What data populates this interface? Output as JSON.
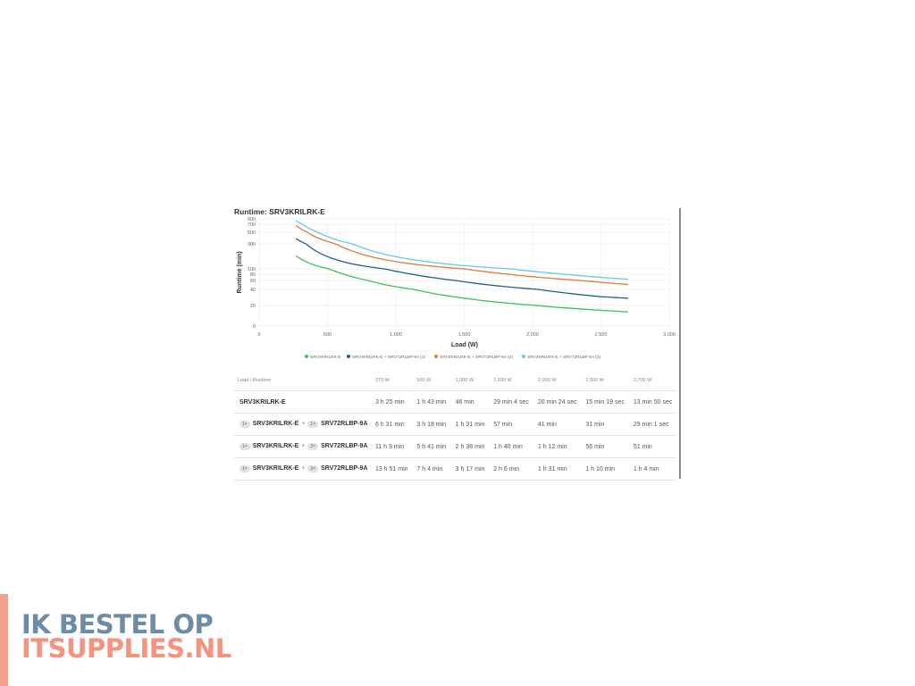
{
  "chart_data": {
    "type": "line",
    "title": "Runtime: SRV3KRILRK-E",
    "xlabel": "Load (W)",
    "ylabel": "Runtime (min)",
    "xlim": [
      0,
      3000
    ],
    "xticks": [
      "0",
      "500",
      "1,000",
      "1,500",
      "2,000",
      "2,500",
      "3,000"
    ],
    "xtick_values": [
      0,
      500,
      1000,
      1500,
      2000,
      2500,
      3000
    ],
    "yticks": [
      "0",
      "20",
      "40",
      "60",
      "80",
      "100",
      "300",
      "500",
      "700",
      "900"
    ],
    "ytick_values": [
      0,
      20,
      40,
      60,
      80,
      100,
      300,
      500,
      700,
      900
    ],
    "grid": true,
    "legend_position": "bottom",
    "x": [
      270,
      500,
      1000,
      1500,
      2000,
      2500,
      2700
    ],
    "series": [
      {
        "name": "SRV3KRILRK-E",
        "color": "#3dbf55",
        "values": [
          205,
          103,
          46,
          29.07,
          20.4,
          15.32,
          13.83
        ]
      },
      {
        "name": "SRV3KRILRK-E + SRV72RLBP-9A (1)",
        "color": "#1d5f8c",
        "values": [
          391,
          198,
          91,
          57,
          41,
          31,
          29.02
        ]
      },
      {
        "name": "SRV3KRILRK-E + SRV72RLBP-9A (2)",
        "color": "#e07b3a",
        "values": [
          669,
          341,
          158,
          100,
          72,
          56,
          51
        ]
      },
      {
        "name": "SRV3KRILRK-E + SRV72RLBP-9A (3)",
        "color": "#6cc8e4",
        "values": [
          831,
          424,
          197,
          126,
          91,
          70,
          64
        ]
      }
    ]
  },
  "table": {
    "headers": [
      "Load / Runtime",
      "270 W",
      "500 W",
      "1,000 W",
      "1,500 W",
      "2,000 W",
      "2,500 W",
      "2,700 W"
    ],
    "rows": [
      {
        "base": "SRV3KRILRK-E",
        "cells": [
          "3 h 25 min",
          "1 h 43 min",
          "46 min",
          "29 min 4 sec",
          "20 min 24 sec",
          "15 min 19 sec",
          "13 min 50 sec"
        ]
      },
      {
        "base_qty": "1×",
        "base": "SRV3KRILRK-E",
        "plus": "+",
        "ext_qty": "1×",
        "ext": "SRV72RLBP-9A",
        "cells": [
          "6 h 31 min",
          "3 h 18 min",
          "1 h 31 min",
          "57 min",
          "41 min",
          "31 min",
          "29 min 1 sec"
        ]
      },
      {
        "base_qty": "1×",
        "base": "SRV3KRILRK-E",
        "plus": "+",
        "ext_qty": "2×",
        "ext": "SRV72RLBP-9A",
        "cells": [
          "11 h 9 min",
          "5 h 41 min",
          "2 h 38 min",
          "1 h 40 min",
          "1 h 12 min",
          "56 min",
          "51 min"
        ]
      },
      {
        "base_qty": "1×",
        "base": "SRV3KRILRK-E",
        "plus": "+",
        "ext_qty": "3×",
        "ext": "SRV72RLBP-9A",
        "cells": [
          "13 h 51 min",
          "7 h 4 min",
          "3 h 17 min",
          "2 h 6 min",
          "1 h 31 min",
          "1 h 10 min",
          "1 h 4 min"
        ]
      }
    ]
  },
  "logo": {
    "line1": "IK BESTEL OP",
    "line2": "ITSUPPLIES.NL",
    "color1": "#6d8ca5",
    "color2": "#f49380"
  }
}
